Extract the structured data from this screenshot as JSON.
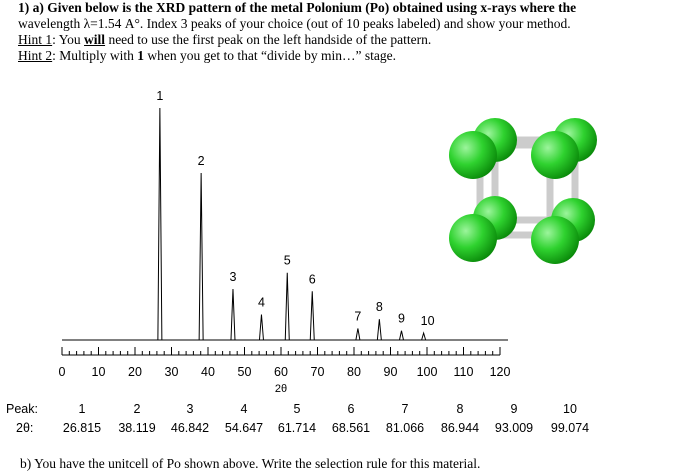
{
  "problem": {
    "line1": "1) a) Given below is the XRD pattern of the metal Polonium (Po) obtained using x-rays where the",
    "line2": "wavelength λ=1.54 A°. Index 3 peaks of your choice (out of 10 peaks labeled) and show your method.",
    "hint1_label": "Hint 1",
    "hint1_a": ": You ",
    "hint1_bold": "will",
    "hint1_b": " need to use the first peak on the left handside of the pattern.",
    "hint2_label": "Hint 2",
    "hint2_a": ": Multiply with ",
    "hint2_bold": "1",
    "hint2_b": " when you get to that “divide by min…” stage."
  },
  "pattern": {
    "intensities": [
      100,
      72,
      22,
      11,
      29,
      21,
      5,
      9,
      4,
      3
    ],
    "xlim": [
      0,
      120
    ],
    "xticks": [
      0,
      10,
      20,
      30,
      40,
      50,
      60,
      70,
      80,
      90,
      100,
      110,
      120
    ],
    "xminor": 2,
    "xlabel": "2θ"
  },
  "table": {
    "peak_header": "Peak:",
    "two_theta_header": "2θ:",
    "peaks": [
      1,
      2,
      3,
      4,
      5,
      6,
      7,
      8,
      9,
      10
    ],
    "two_theta": [
      26.815,
      38.119,
      46.842,
      54.647,
      61.714,
      68.561,
      81.066,
      86.944,
      93.009,
      99.074
    ]
  },
  "part_b": "b) You have the unitcell of Po shown above. Write the selection rule for this material."
}
